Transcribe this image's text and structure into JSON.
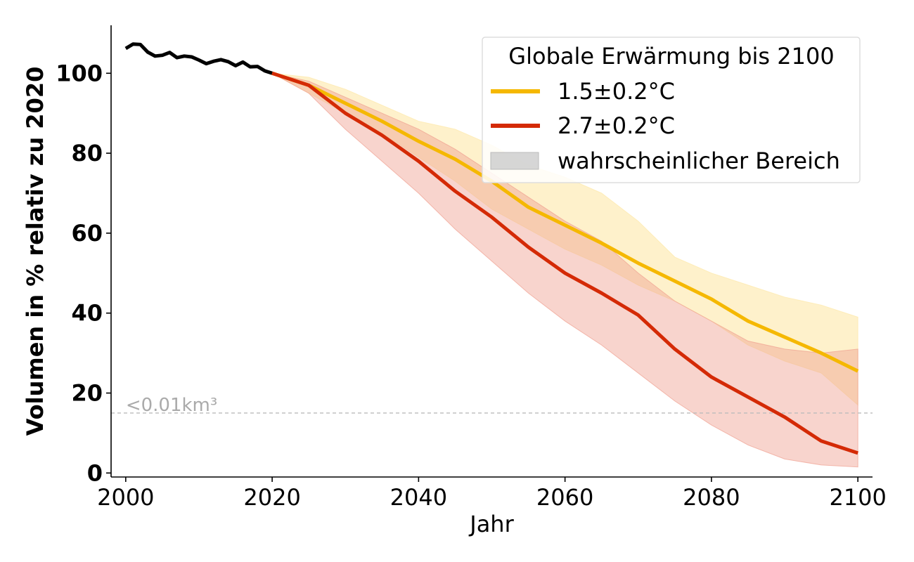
{
  "chart_data": {
    "type": "line",
    "xlabel": "Jahr",
    "ylabel": "Volumen in % relativ zu 2020",
    "xlim": [
      1998,
      2102
    ],
    "ylim": [
      -1,
      112
    ],
    "xticks": [
      2000,
      2020,
      2040,
      2060,
      2080,
      2100
    ],
    "yticks": [
      0,
      20,
      40,
      60,
      80,
      100
    ],
    "grid": false,
    "legend": {
      "title": "Globale Erwärmung bis 2100",
      "placement": "top-right",
      "entries": [
        "1.5±0.2°C",
        "2.7±0.2°C",
        "wahrscheinlicher Bereich"
      ]
    },
    "reference_line": {
      "y": 15,
      "label": "<0.01km³",
      "color": "#bbbbbb"
    },
    "historical": {
      "color": "#000000",
      "x": [
        2000,
        2001,
        2002,
        2003,
        2004,
        2005,
        2006,
        2007,
        2008,
        2009,
        2010,
        2011,
        2012,
        2013,
        2014,
        2015,
        2016,
        2017,
        2018,
        2019,
        2020
      ],
      "y": [
        106.2,
        107.3,
        107.2,
        105.3,
        104.3,
        104.5,
        105.2,
        103.9,
        104.3,
        104.1,
        103.3,
        102.4,
        103.0,
        103.4,
        102.9,
        101.9,
        102.8,
        101.6,
        101.7,
        100.6,
        100
      ]
    },
    "series": [
      {
        "name": "1.5±0.2°C",
        "color": "#f5b800",
        "band_color": "#fde8a8",
        "x": [
          2020,
          2025,
          2030,
          2035,
          2040,
          2045,
          2050,
          2055,
          2060,
          2065,
          2070,
          2075,
          2080,
          2085,
          2090,
          2095,
          2100
        ],
        "y": [
          100,
          97,
          92.5,
          88,
          83,
          78.5,
          73,
          66.5,
          62,
          57.5,
          52.5,
          48,
          43.5,
          38,
          34,
          30,
          25.5
        ],
        "lower": [
          100,
          95,
          90,
          85,
          79,
          73,
          66,
          61,
          56,
          52,
          47,
          43,
          38,
          32,
          28,
          25,
          17
        ],
        "upper": [
          100,
          99,
          96,
          92,
          88,
          86,
          82,
          77,
          74,
          70,
          63,
          54,
          50,
          47,
          44,
          42,
          39
        ]
      },
      {
        "name": "2.7±0.2°C",
        "color": "#d42a06",
        "band_color": "#f0a090",
        "x": [
          2020,
          2025,
          2030,
          2035,
          2040,
          2045,
          2050,
          2055,
          2060,
          2065,
          2070,
          2075,
          2080,
          2085,
          2090,
          2095,
          2100
        ],
        "y": [
          100,
          97,
          90,
          84.5,
          78,
          70.5,
          64,
          56.5,
          50,
          45,
          39.5,
          31,
          24,
          19,
          14,
          8,
          5
        ],
        "lower": [
          100,
          95,
          86,
          78,
          70,
          61,
          53,
          45,
          38,
          32,
          25,
          18,
          12,
          7,
          3.5,
          2,
          1.5
        ],
        "upper": [
          100,
          98,
          94,
          90,
          86,
          81,
          75,
          69,
          63,
          58,
          50,
          43,
          38,
          33,
          31,
          30,
          31
        ]
      }
    ]
  }
}
